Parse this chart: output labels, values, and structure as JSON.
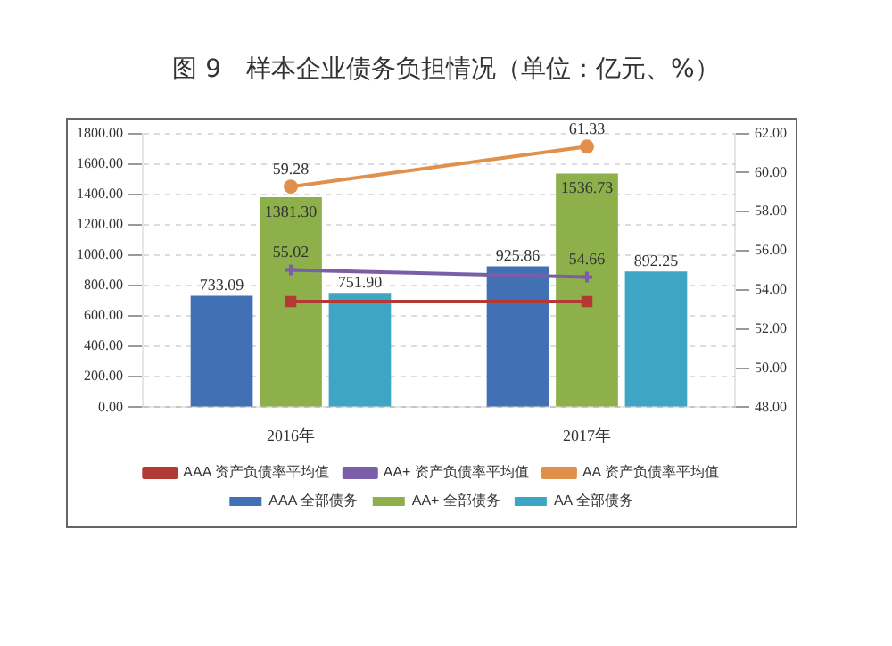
{
  "chart_data": {
    "type": "bar",
    "title": "图 9　样本企业债务负担情况（单位：亿元、%）",
    "categories": [
      "2016年",
      "2017年"
    ],
    "series": [
      {
        "name": "AAA 全部债务",
        "color": "#4270b4",
        "values": [
          733.09,
          925.86
        ],
        "value_labels": [
          "733.09",
          "925.86"
        ]
      },
      {
        "name": "AA+ 全部债务",
        "color": "#8db04a",
        "values": [
          1381.3,
          1536.73
        ],
        "value_labels": [
          "1381.30",
          "1536.73"
        ]
      },
      {
        "name": "AA 全部债务",
        "color": "#3fa5c4",
        "values": [
          751.9,
          892.25
        ],
        "value_labels": [
          "751.90",
          "892.25"
        ]
      },
      {
        "name": "AAA 资产负债率平均值",
        "type": "line",
        "axis": "y2",
        "marker": "square",
        "color": "#b23a32",
        "values": [
          53.4,
          53.4
        ]
      },
      {
        "name": "AA+ 资产负债率平均值",
        "type": "line",
        "axis": "y2",
        "marker": "cross",
        "color": "#7a5fa8",
        "values": [
          55.02,
          54.66
        ],
        "value_labels": [
          "55.02",
          "54.66"
        ]
      },
      {
        "name": "AA 资产负债率平均值",
        "type": "line",
        "axis": "y2",
        "marker": "circle",
        "color": "#e0904a",
        "values": [
          59.28,
          61.33
        ],
        "value_labels": [
          "59.28",
          "61.33"
        ]
      }
    ],
    "ylim": [
      0,
      1800
    ],
    "yticks": [
      {
        "value": 0,
        "label": "0.00"
      },
      {
        "value": 200,
        "label": "200.00"
      },
      {
        "value": 400,
        "label": "400.00"
      },
      {
        "value": 600,
        "label": "600.00"
      },
      {
        "value": 800,
        "label": "800.00"
      },
      {
        "value": 1000,
        "label": "1000.00"
      },
      {
        "value": 1200,
        "label": "1200.00"
      },
      {
        "value": 1400,
        "label": "1400.00"
      },
      {
        "value": 1600,
        "label": "1600.00"
      },
      {
        "value": 1800,
        "label": "1800.00"
      }
    ],
    "y2lim": [
      48,
      62
    ],
    "y2ticks": [
      {
        "value": 48,
        "label": "48.00"
      },
      {
        "value": 50,
        "label": "50.00"
      },
      {
        "value": 52,
        "label": "52.00"
      },
      {
        "value": 54,
        "label": "54.00"
      },
      {
        "value": 56,
        "label": "56.00"
      },
      {
        "value": 58,
        "label": "58.00"
      },
      {
        "value": 60,
        "label": "60.00"
      },
      {
        "value": 62,
        "label": "62.00"
      }
    ],
    "grid": "y",
    "legend": "bottom"
  }
}
